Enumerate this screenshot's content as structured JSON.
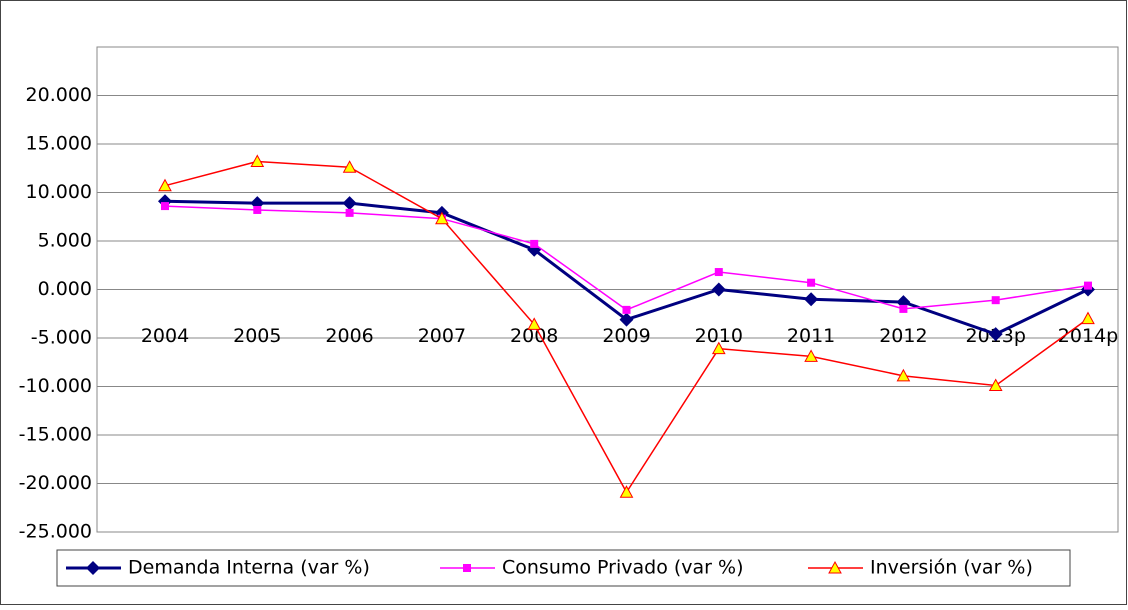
{
  "chart_data": {
    "type": "line",
    "categories": [
      "2004",
      "2005",
      "2006",
      "2007",
      "2008",
      "2009",
      "2010",
      "2011",
      "2012",
      "2013p",
      "2014p"
    ],
    "series": [
      {
        "name": "Demanda Interna (var %)",
        "color": "#000080",
        "marker": "diamond",
        "values": [
          9.1,
          8.9,
          8.9,
          7.9,
          4.1,
          -3.1,
          0,
          -1.0,
          -1.3,
          -4.6,
          0
        ]
      },
      {
        "name": "Consumo Privado (var %)",
        "color": "#ff00ff",
        "marker": "square",
        "values": [
          8.6,
          8.2,
          7.9,
          7.3,
          4.7,
          -2.1,
          1.8,
          0.7,
          -2.0,
          -1.1,
          0.4
        ]
      },
      {
        "name": "Inversión (var %)",
        "color": "#ff0000",
        "marker": "triangle",
        "values": [
          10.7,
          13.2,
          12.6,
          7.3,
          -3.6,
          -20.9,
          -6.1,
          -6.9,
          -8.9,
          -9.9,
          -3.0
        ]
      }
    ],
    "ylim": [
      -25,
      25
    ],
    "yticks": [
      {
        "value": -25,
        "label": "-25.000"
      },
      {
        "value": -20,
        "label": "-20.000"
      },
      {
        "value": -15,
        "label": "-15.000"
      },
      {
        "value": -10,
        "label": "-10.000"
      },
      {
        "value": -5,
        "label": "-5.000"
      },
      {
        "value": 0,
        "label": "0.000"
      },
      {
        "value": 5,
        "label": "5.000"
      },
      {
        "value": 10,
        "label": "10.000"
      },
      {
        "value": 15,
        "label": "15.000"
      },
      {
        "value": 20,
        "label": "20.000"
      }
    ],
    "grid": true,
    "legend": "bottom"
  }
}
